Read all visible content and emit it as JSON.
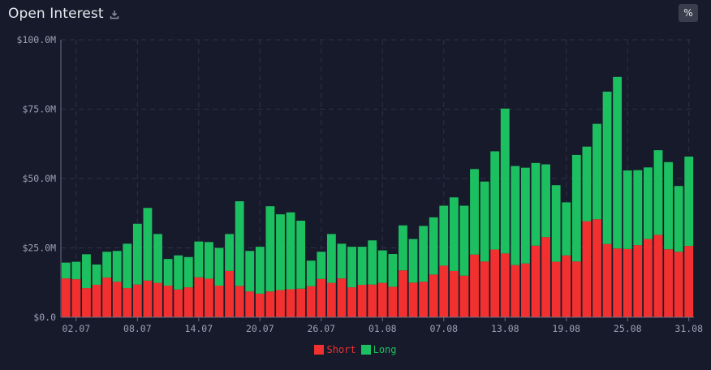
{
  "header": {
    "title": "Open Interest",
    "pct_label": "%"
  },
  "colors": {
    "short": "#f23030",
    "long": "#1dc060",
    "background": "#171a2b",
    "grid": "#2e3244",
    "axis_text": "#9aa0b3"
  },
  "chart_data": {
    "type": "bar",
    "stacked": true,
    "x": [
      "01.07",
      "02.07",
      "03.07",
      "04.07",
      "05.07",
      "06.07",
      "07.07",
      "08.07",
      "09.07",
      "10.07",
      "11.07",
      "12.07",
      "13.07",
      "14.07",
      "15.07",
      "16.07",
      "17.07",
      "18.07",
      "19.07",
      "20.07",
      "21.07",
      "22.07",
      "23.07",
      "24.07",
      "25.07",
      "26.07",
      "27.07",
      "28.07",
      "29.07",
      "30.07",
      "31.07",
      "01.08",
      "02.08",
      "03.08",
      "04.08",
      "05.08",
      "06.08",
      "07.08",
      "08.08",
      "09.08",
      "10.08",
      "11.08",
      "12.08",
      "13.08",
      "14.08",
      "15.08",
      "16.08",
      "17.08",
      "18.08",
      "19.08",
      "20.08",
      "21.08",
      "22.08",
      "23.08",
      "24.08",
      "25.08",
      "26.08",
      "27.08",
      "28.08",
      "29.08",
      "30.08",
      "31.08"
    ],
    "x_tick_labels": [
      "02.07",
      "08.07",
      "14.07",
      "20.07",
      "26.07",
      "01.08",
      "07.08",
      "13.08",
      "19.08",
      "25.08",
      "31.08"
    ],
    "y_tick_labels": [
      "$0.0",
      "$25.0M",
      "$50.0M",
      "$75.0M",
      "$100.0M"
    ],
    "ylim": [
      0,
      100
    ],
    "y_unit": "M USD",
    "series": [
      {
        "name": "Short",
        "values": [
          14,
          13.7,
          10.5,
          11.7,
          14.3,
          12.8,
          10.5,
          11.8,
          13.2,
          12.4,
          11.4,
          10,
          10.8,
          14.4,
          13.9,
          11.4,
          16.7,
          11.3,
          9.3,
          8.5,
          9.3,
          9.8,
          10.1,
          10.3,
          11.2,
          13.8,
          12.4,
          14,
          10.8,
          11.7,
          11.8,
          12.4,
          11,
          16.9,
          12.5,
          12.8,
          15.4,
          18.6,
          16.7,
          15,
          22.6,
          20.1,
          24.4,
          23,
          18.8,
          19.4,
          25.8,
          28.9,
          20,
          22.3,
          20.1,
          34.6,
          35.3,
          26.4,
          24.8,
          24.6,
          26,
          28.2,
          29.7,
          24.5,
          23.6,
          25.7
        ]
      },
      {
        "name": "Long",
        "values": [
          5.7,
          6.3,
          12.2,
          7.3,
          9.3,
          11.1,
          16,
          21.9,
          26.2,
          17.6,
          9.6,
          12.3,
          10.9,
          12.9,
          13.2,
          13.6,
          13.3,
          30.5,
          14.6,
          16.9,
          30.7,
          27.3,
          27.7,
          24.5,
          9.2,
          9.8,
          17.6,
          12.5,
          14.6,
          13.7,
          15.9,
          11.7,
          11.8,
          16.2,
          15.7,
          20.1,
          20.6,
          21.6,
          26.5,
          25.2,
          30.8,
          28.8,
          35.4,
          52.2,
          35.7,
          34.5,
          29.8,
          26.2,
          27.6,
          19.1,
          38.4,
          26.9,
          34.4,
          54.9,
          61.8,
          28.3,
          27,
          25.8,
          30.5,
          31.4,
          23.7,
          32.2
        ]
      }
    ],
    "legend": {
      "position": "bottom-center"
    },
    "grid": true
  }
}
